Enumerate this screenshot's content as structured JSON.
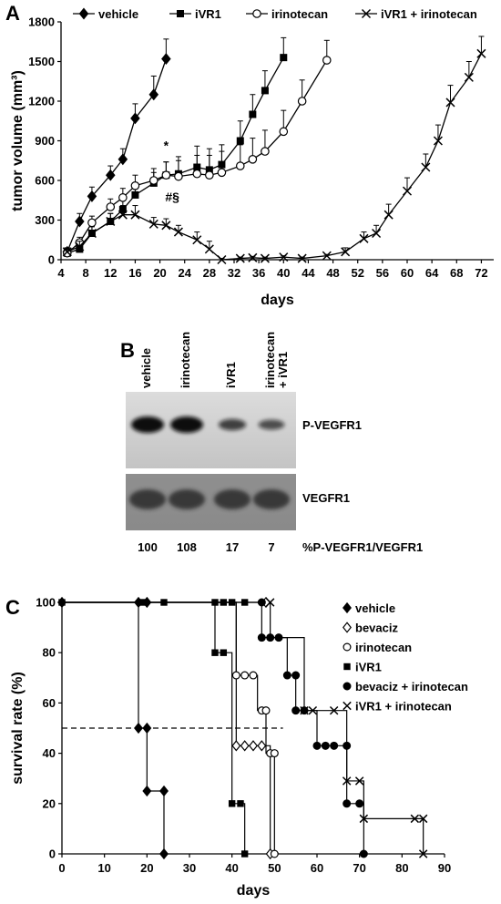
{
  "panel_a": {
    "letter": "A",
    "chart_data": {
      "type": "line",
      "xlabel": "days",
      "ylabel": "tumor volume (mm³)",
      "xlim": [
        4,
        74
      ],
      "ylim": [
        0,
        1800
      ],
      "xticks": [
        4,
        8,
        12,
        16,
        20,
        24,
        28,
        32,
        36,
        40,
        44,
        48,
        52,
        56,
        60,
        64,
        68,
        72
      ],
      "yticks": [
        0,
        300,
        600,
        900,
        1200,
        1500,
        1800
      ],
      "legend_position": "top",
      "annotations": [
        {
          "text": "*",
          "x": 21,
          "y": 830
        },
        {
          "text": "#§",
          "x": 22,
          "y": 440
        }
      ],
      "series": [
        {
          "name": "vehicle",
          "marker": "diamond-filled",
          "x": [
            5,
            7,
            9,
            12,
            14,
            16,
            19,
            21
          ],
          "y": [
            60,
            290,
            480,
            640,
            760,
            1070,
            1250,
            1520
          ],
          "err": [
            30,
            60,
            70,
            70,
            80,
            110,
            140,
            150
          ]
        },
        {
          "name": "iVR1",
          "marker": "square-filled",
          "x": [
            5,
            7,
            9,
            12,
            14,
            16,
            19,
            21,
            23,
            26,
            28,
            30,
            33,
            35,
            37,
            40
          ],
          "y": [
            50,
            80,
            200,
            290,
            380,
            490,
            580,
            640,
            650,
            700,
            680,
            720,
            900,
            1100,
            1280,
            1530
          ],
          "err": [
            30,
            40,
            50,
            60,
            70,
            80,
            80,
            100,
            130,
            160,
            160,
            150,
            150,
            150,
            150,
            150
          ]
        },
        {
          "name": "irinotecan",
          "marker": "circle-open",
          "x": [
            5,
            7,
            9,
            12,
            14,
            16,
            19,
            21,
            23,
            26,
            28,
            30,
            33,
            35,
            37,
            40,
            43,
            47
          ],
          "y": [
            50,
            130,
            280,
            400,
            470,
            560,
            600,
            640,
            630,
            650,
            640,
            660,
            710,
            760,
            820,
            970,
            1200,
            1510
          ],
          "err": [
            30,
            40,
            50,
            60,
            70,
            80,
            90,
            100,
            120,
            140,
            150,
            160,
            160,
            160,
            160,
            160,
            160,
            150
          ]
        },
        {
          "name": "iVR1 + irinotecan",
          "marker": "cross",
          "x": [
            5,
            7,
            9,
            12,
            14,
            16,
            19,
            21,
            23,
            26,
            28,
            30,
            33,
            35,
            37,
            40,
            43,
            47,
            50,
            53,
            55,
            57,
            60,
            63,
            65,
            67,
            70,
            72
          ],
          "y": [
            60,
            100,
            200,
            290,
            340,
            340,
            270,
            260,
            210,
            150,
            80,
            0,
            10,
            15,
            10,
            20,
            10,
            30,
            60,
            160,
            200,
            340,
            520,
            700,
            900,
            1190,
            1380,
            1560
          ],
          "err": [
            30,
            40,
            50,
            60,
            70,
            70,
            50,
            50,
            50,
            60,
            60,
            10,
            10,
            10,
            10,
            10,
            10,
            10,
            30,
            50,
            60,
            80,
            100,
            100,
            120,
            130,
            120,
            130
          ]
        }
      ]
    }
  },
  "panel_b": {
    "letter": "B",
    "lanes": [
      "vehicle",
      "irinotecan",
      "iVR1",
      "irinotecan\n+ iVR1"
    ],
    "lane_labels_line1": [
      "vehicle",
      "irinotecan",
      "iVR1",
      "irinotecan"
    ],
    "lane_labels_line2": [
      "",
      "",
      "",
      "+ iVR1"
    ],
    "blot1_label": "P-VEGFR1",
    "blot2_label": "VEGFR1",
    "quant_values": [
      100,
      108,
      17,
      7
    ],
    "quant_label": "%P-VEGFR1/VEGFR1",
    "band_intensity_p": [
      1.0,
      1.0,
      0.6,
      0.5
    ],
    "band_intensity_total": [
      1.0,
      1.0,
      1.0,
      1.0
    ],
    "colors": {
      "blot_bg_top": "#dcdcdc",
      "blot_bg_bottom": "#8a8a8a"
    }
  },
  "panel_c": {
    "letter": "C",
    "chart_data": {
      "type": "line",
      "step": true,
      "xlabel": "days",
      "ylabel": "survival rate (%)",
      "xlim": [
        0,
        90
      ],
      "ylim": [
        0,
        100
      ],
      "xticks": [
        0,
        10,
        20,
        30,
        40,
        50,
        60,
        70,
        80,
        90
      ],
      "yticks": [
        0,
        20,
        40,
        60,
        80,
        100
      ],
      "reference_line": {
        "y": 50,
        "x_from": 0,
        "x_to": 52,
        "style": "dashed"
      },
      "legend_position": "right",
      "series": [
        {
          "name": "vehicle",
          "marker": "diamond-filled",
          "x": [
            0,
            18,
            20,
            24
          ],
          "y": [
            100,
            50,
            25,
            0
          ]
        },
        {
          "name": "bevaciz",
          "marker": "diamond-open",
          "x": [
            0,
            41,
            45,
            47,
            49
          ],
          "y": [
            100,
            43,
            43,
            43,
            0
          ]
        },
        {
          "name": "irinotecan",
          "marker": "circle-open",
          "x": [
            0,
            41,
            44,
            46,
            48,
            50
          ],
          "y": [
            100,
            71,
            71,
            57,
            40,
            0
          ]
        },
        {
          "name": "iVR1",
          "marker": "square-filled",
          "x": [
            0,
            36,
            40,
            43
          ],
          "y": [
            100,
            80,
            20,
            0
          ]
        },
        {
          "name": "bevaciz + irinotecan",
          "marker": "circle-filled",
          "x": [
            0,
            47,
            53,
            55,
            60,
            64,
            67,
            71
          ],
          "y": [
            100,
            86,
            71,
            57,
            43,
            43,
            20,
            0
          ]
        },
        {
          "name": "iVR1 + irinotecan",
          "marker": "cross",
          "x": [
            0,
            49,
            57,
            64,
            67,
            71,
            83,
            85
          ],
          "y": [
            100,
            86,
            57,
            57,
            29,
            14,
            14,
            0
          ]
        }
      ],
      "markers": [
        {
          "series": "vehicle",
          "pts": [
            [
              0,
              100
            ],
            [
              18,
              100
            ],
            [
              20,
              100
            ],
            [
              18,
              50
            ],
            [
              20,
              50
            ],
            [
              20,
              25
            ],
            [
              24,
              25
            ],
            [
              24,
              0
            ]
          ]
        },
        {
          "series": "bevaciz",
          "pts": [
            [
              41,
              43
            ],
            [
              43,
              43
            ],
            [
              45,
              43
            ],
            [
              48,
              100
            ],
            [
              47,
              43
            ],
            [
              49,
              0
            ]
          ]
        },
        {
          "series": "irinotecan",
          "pts": [
            [
              41,
              71
            ],
            [
              43,
              71
            ],
            [
              45,
              71
            ],
            [
              47,
              57
            ],
            [
              48,
              57
            ],
            [
              49,
              40
            ],
            [
              50,
              40
            ],
            [
              50,
              0
            ]
          ]
        },
        {
          "series": "iVR1",
          "pts": [
            [
              0,
              100
            ],
            [
              19,
              100
            ],
            [
              24,
              100
            ],
            [
              36,
              100
            ],
            [
              38,
              100
            ],
            [
              40,
              100
            ],
            [
              43,
              100
            ],
            [
              36,
              80
            ],
            [
              38,
              80
            ],
            [
              40,
              20
            ],
            [
              42,
              20
            ],
            [
              43,
              0
            ]
          ]
        },
        {
          "series": "bevaciz + irinotecan",
          "pts": [
            [
              47,
              100
            ],
            [
              47,
              86
            ],
            [
              49,
              86
            ],
            [
              51,
              86
            ],
            [
              53,
              71
            ],
            [
              55,
              71
            ],
            [
              55,
              57
            ],
            [
              57,
              57
            ],
            [
              60,
              43
            ],
            [
              62,
              43
            ],
            [
              64,
              43
            ],
            [
              67,
              43
            ],
            [
              67,
              20
            ],
            [
              70,
              20
            ],
            [
              71,
              0
            ]
          ]
        },
        {
          "series": "iVR1 + irinotecan",
          "pts": [
            [
              49,
              100
            ],
            [
              57,
              57
            ],
            [
              59,
              57
            ],
            [
              64,
              57
            ],
            [
              67,
              29
            ],
            [
              70,
              29
            ],
            [
              71,
              14
            ],
            [
              83,
              14
            ],
            [
              85,
              14
            ],
            [
              85,
              0
            ]
          ]
        }
      ]
    }
  }
}
